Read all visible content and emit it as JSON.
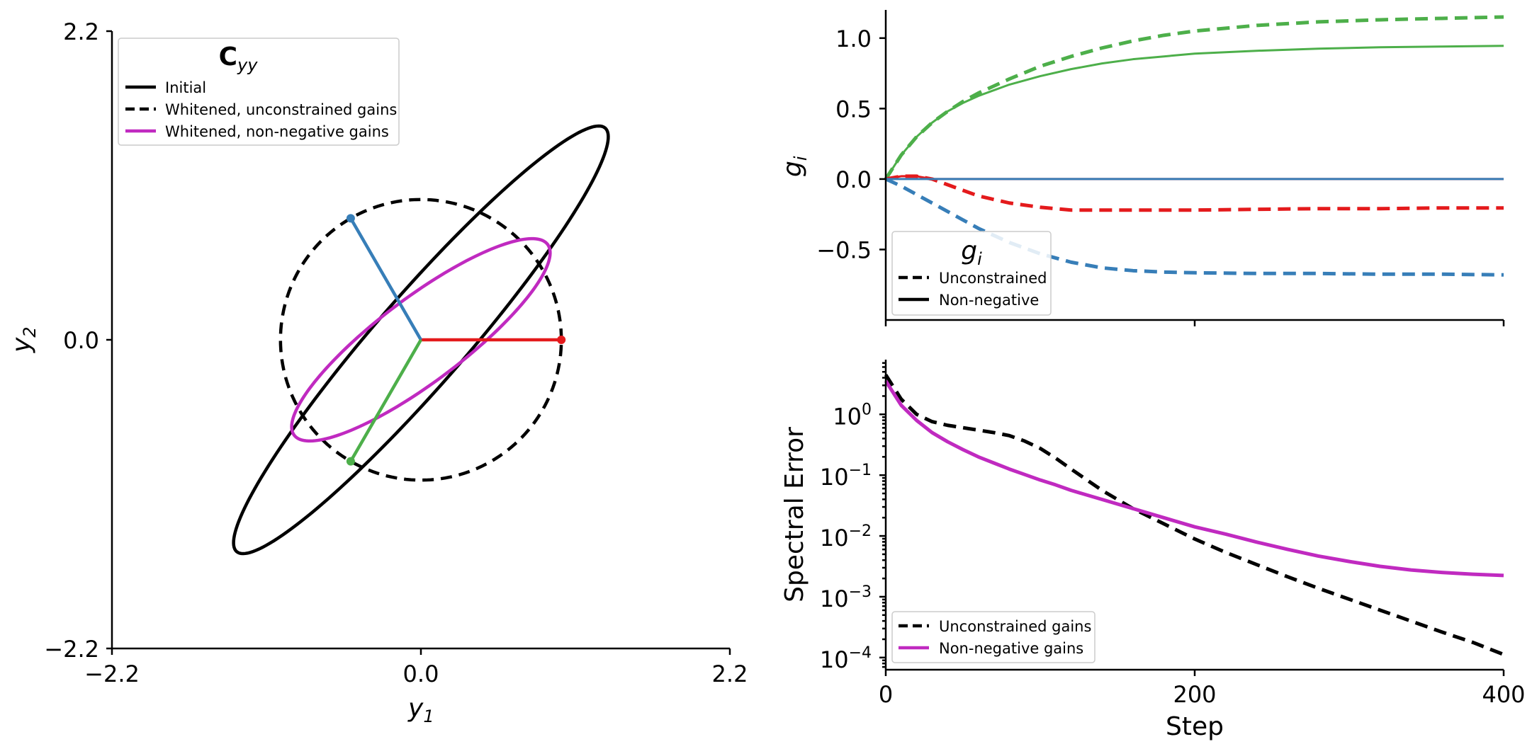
{
  "colors": {
    "red": "#e41a1c",
    "blue": "#377eb8",
    "green": "#4daf4a",
    "magenta": "#c02ac0",
    "black": "#000000"
  },
  "chart_data": [
    {
      "type": "scatter",
      "name": "covariance-ellipses",
      "xlabel_main": "y",
      "xlabel_sub": "1",
      "ylabel_main": "y",
      "ylabel_sub": "2",
      "xlim": [
        -2.2,
        2.2
      ],
      "ylim": [
        -2.2,
        2.2
      ],
      "xticks": [
        "−2.2",
        "0.0",
        "2.2"
      ],
      "yticks": [
        "2.2",
        "0.0",
        "−2.2"
      ],
      "legend": {
        "title_main": "C",
        "title_sub": "yy",
        "entries": [
          "Initial",
          "Whitened, unconstrained gains",
          "Whitened, non-negative gains"
        ]
      },
      "ellipses": [
        {
          "name": "Initial",
          "center": [
            0,
            0
          ],
          "a": 2.0,
          "b": 0.32,
          "angle_deg": 49,
          "style": "solid",
          "color": "#000000"
        },
        {
          "name": "Whitened, unconstrained gains",
          "center": [
            0,
            0
          ],
          "a": 1.0,
          "b": 1.0,
          "angle_deg": 0,
          "style": "dashed",
          "color": "#000000"
        },
        {
          "name": "Whitened, non-negative gains",
          "center": [
            0,
            0
          ],
          "a": 1.13,
          "b": 0.3,
          "angle_deg": 37,
          "style": "solid",
          "color": "#c02ac0"
        }
      ],
      "frame_vectors": [
        {
          "name": "red",
          "end": [
            1.0,
            0.0
          ],
          "color": "#e41a1c"
        },
        {
          "name": "blue",
          "end": [
            -0.5,
            0.866
          ],
          "color": "#377eb8"
        },
        {
          "name": "green",
          "end": [
            -0.5,
            -0.866
          ],
          "color": "#4daf4a"
        }
      ]
    },
    {
      "type": "line",
      "name": "gains",
      "ylabel_main": "g",
      "ylabel_sub": "i",
      "xlim": [
        0,
        400
      ],
      "ylim": [
        -1.0,
        1.2
      ],
      "yticks": [
        {
          "v": 1.0,
          "label": "1.0"
        },
        {
          "v": 0.5,
          "label": "0.5"
        },
        {
          "v": 0.0,
          "label": "0.0"
        },
        {
          "v": -0.5,
          "label": "−0.5"
        }
      ],
      "xticks": [
        0,
        200,
        400
      ],
      "legend": {
        "title_main": "g",
        "title_sub": "i",
        "entries": [
          "Unconstrained",
          "Non-negative"
        ]
      },
      "x": [
        0,
        10,
        20,
        30,
        40,
        50,
        60,
        80,
        100,
        120,
        140,
        160,
        180,
        200,
        240,
        280,
        320,
        360,
        400
      ],
      "series": [
        {
          "name": "green unconstrained",
          "color": "#4daf4a",
          "style": "dashed",
          "values": [
            0,
            0.17,
            0.3,
            0.4,
            0.48,
            0.55,
            0.61,
            0.71,
            0.8,
            0.87,
            0.93,
            0.98,
            1.02,
            1.05,
            1.09,
            1.115,
            1.13,
            1.14,
            1.15
          ]
        },
        {
          "name": "green non-negative",
          "color": "#4daf4a",
          "style": "solid",
          "values": [
            0,
            0.17,
            0.3,
            0.4,
            0.48,
            0.54,
            0.59,
            0.67,
            0.73,
            0.78,
            0.82,
            0.85,
            0.87,
            0.89,
            0.91,
            0.925,
            0.935,
            0.94,
            0.945
          ]
        },
        {
          "name": "red unconstrained",
          "color": "#e41a1c",
          "style": "dashed",
          "values": [
            0,
            0.02,
            0.02,
            0.0,
            -0.04,
            -0.08,
            -0.12,
            -0.17,
            -0.2,
            -0.22,
            -0.22,
            -0.22,
            -0.22,
            -0.22,
            -0.215,
            -0.21,
            -0.21,
            -0.205,
            -0.205
          ]
        },
        {
          "name": "red non-negative",
          "color": "#e41a1c",
          "style": "solid",
          "values": [
            0,
            0.02,
            0.02,
            0.0,
            0.0,
            0.0,
            0.0,
            0.0,
            0.0,
            0.0,
            0.0,
            0.0,
            0.0,
            0.0,
            0.0,
            0.0,
            0.0,
            0.0,
            0.0
          ]
        },
        {
          "name": "blue unconstrained",
          "color": "#377eb8",
          "style": "dashed",
          "values": [
            0,
            -0.05,
            -0.11,
            -0.17,
            -0.23,
            -0.29,
            -0.35,
            -0.45,
            -0.53,
            -0.59,
            -0.63,
            -0.65,
            -0.66,
            -0.665,
            -0.67,
            -0.67,
            -0.675,
            -0.675,
            -0.68
          ]
        },
        {
          "name": "blue non-negative",
          "color": "#377eb8",
          "style": "solid",
          "values": [
            0,
            0,
            0,
            0,
            0,
            0,
            0,
            0,
            0,
            0,
            0,
            0,
            0,
            0,
            0,
            0,
            0,
            0,
            0
          ]
        }
      ]
    },
    {
      "type": "line",
      "name": "spectral-error",
      "ylabel": "Spectral Error",
      "xlabel": "Step",
      "xlim": [
        0,
        400
      ],
      "ylim_log10": [
        -4.2,
        0.9
      ],
      "yticks": [
        {
          "exp": 0,
          "label": "0"
        },
        {
          "exp": -1,
          "label": "−1"
        },
        {
          "exp": -2,
          "label": "−2"
        },
        {
          "exp": -3,
          "label": "−3"
        },
        {
          "exp": -4,
          "label": "−4"
        }
      ],
      "xticks": [
        {
          "v": 0,
          "label": "0"
        },
        {
          "v": 200,
          "label": "200"
        },
        {
          "v": 400,
          "label": "400"
        }
      ],
      "legend": {
        "entries": [
          "Unconstrained gains",
          "Non-negative gains"
        ]
      },
      "x": [
        0,
        5,
        10,
        20,
        30,
        40,
        50,
        60,
        70,
        80,
        90,
        100,
        110,
        120,
        140,
        160,
        180,
        200,
        220,
        240,
        260,
        280,
        300,
        320,
        340,
        360,
        380,
        400
      ],
      "series": [
        {
          "name": "Unconstrained gains",
          "color": "#000000",
          "style": "dashed",
          "values_log10": [
            0.65,
            0.45,
            0.25,
            0.0,
            -0.12,
            -0.18,
            -0.22,
            -0.26,
            -0.3,
            -0.35,
            -0.44,
            -0.56,
            -0.72,
            -0.9,
            -1.25,
            -1.55,
            -1.8,
            -2.05,
            -2.27,
            -2.47,
            -2.67,
            -2.86,
            -3.04,
            -3.22,
            -3.4,
            -3.58,
            -3.75,
            -3.95
          ]
        },
        {
          "name": "Non-negative gains",
          "color": "#c02ac0",
          "style": "solid",
          "values_log10": [
            0.55,
            0.35,
            0.15,
            -0.1,
            -0.3,
            -0.45,
            -0.58,
            -0.7,
            -0.8,
            -0.9,
            -0.99,
            -1.08,
            -1.16,
            -1.25,
            -1.4,
            -1.55,
            -1.7,
            -1.85,
            -1.97,
            -2.1,
            -2.22,
            -2.33,
            -2.42,
            -2.5,
            -2.56,
            -2.6,
            -2.63,
            -2.65
          ]
        }
      ]
    }
  ]
}
